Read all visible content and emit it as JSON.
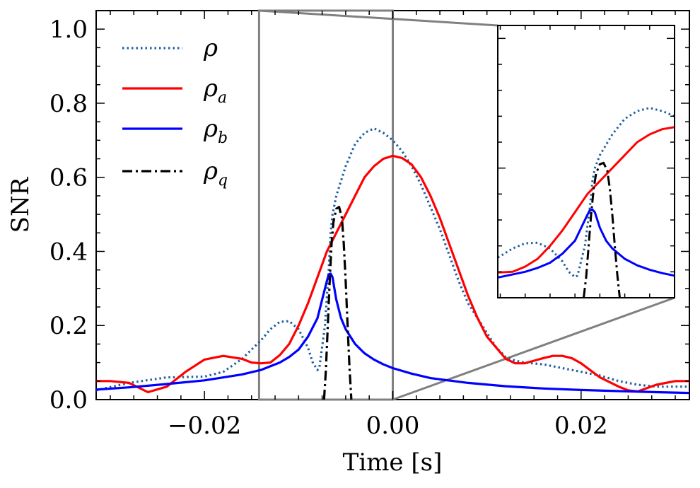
{
  "chart_data": {
    "type": "line",
    "title": "",
    "xlabel": "Time [s]",
    "ylabel": "SNR",
    "xlim": [
      -0.0315,
      0.0315
    ],
    "ylim": [
      0.0,
      1.05
    ],
    "xticks": [
      -0.02,
      0.0,
      0.02
    ],
    "xtick_labels": [
      "−0.02",
      "0.00",
      "0.02"
    ],
    "yticks": [
      0.0,
      0.2,
      0.4,
      0.6,
      0.8,
      1.0
    ],
    "ytick_labels": [
      "0.0",
      "0.2",
      "0.4",
      "0.6",
      "0.8",
      "1.0"
    ],
    "legend_location": "top-left",
    "series": [
      {
        "name": "ρ",
        "sub": "",
        "color": "#1f5fa0",
        "style": "dotted",
        "points": [
          [
            -0.0315,
            0.025
          ],
          [
            -0.028,
            0.045
          ],
          [
            -0.024,
            0.06
          ],
          [
            -0.02,
            0.062
          ],
          [
            -0.018,
            0.075
          ],
          [
            -0.016,
            0.11
          ],
          [
            -0.014,
            0.16
          ],
          [
            -0.013,
            0.19
          ],
          [
            -0.012,
            0.21
          ],
          [
            -0.011,
            0.212
          ],
          [
            -0.01,
            0.19
          ],
          [
            -0.009,
            0.14
          ],
          [
            -0.0085,
            0.1
          ],
          [
            -0.008,
            0.08
          ],
          [
            -0.0078,
            0.085
          ],
          [
            -0.0072,
            0.2
          ],
          [
            -0.0068,
            0.35
          ],
          [
            -0.0066,
            0.45
          ],
          [
            -0.0064,
            0.5
          ],
          [
            -0.006,
            0.55
          ],
          [
            -0.005,
            0.63
          ],
          [
            -0.004,
            0.69
          ],
          [
            -0.003,
            0.72
          ],
          [
            -0.002,
            0.732
          ],
          [
            -0.001,
            0.72
          ],
          [
            0.0,
            0.7
          ],
          [
            0.001,
            0.67
          ],
          [
            0.002,
            0.63
          ],
          [
            0.003,
            0.58
          ],
          [
            0.004,
            0.52
          ],
          [
            0.005,
            0.46
          ],
          [
            0.006,
            0.39
          ],
          [
            0.007,
            0.32
          ],
          [
            0.008,
            0.26
          ],
          [
            0.009,
            0.22
          ],
          [
            0.01,
            0.18
          ],
          [
            0.011,
            0.14
          ],
          [
            0.012,
            0.115
          ],
          [
            0.013,
            0.105
          ],
          [
            0.014,
            0.1
          ],
          [
            0.016,
            0.095
          ],
          [
            0.018,
            0.085
          ],
          [
            0.02,
            0.075
          ],
          [
            0.022,
            0.065
          ],
          [
            0.024,
            0.05
          ],
          [
            0.026,
            0.04
          ],
          [
            0.028,
            0.035
          ],
          [
            0.0315,
            0.035
          ]
        ]
      },
      {
        "name": "ρ",
        "sub": "a",
        "color": "#ff0000",
        "style": "solid",
        "points": [
          [
            -0.0315,
            0.05
          ],
          [
            -0.03,
            0.05
          ],
          [
            -0.028,
            0.045
          ],
          [
            -0.026,
            0.02
          ],
          [
            -0.024,
            0.035
          ],
          [
            -0.022,
            0.075
          ],
          [
            -0.02,
            0.108
          ],
          [
            -0.018,
            0.118
          ],
          [
            -0.016,
            0.11
          ],
          [
            -0.015,
            0.1
          ],
          [
            -0.014,
            0.098
          ],
          [
            -0.013,
            0.1
          ],
          [
            -0.012,
            0.12
          ],
          [
            -0.011,
            0.15
          ],
          [
            -0.01,
            0.2
          ],
          [
            -0.009,
            0.26
          ],
          [
            -0.008,
            0.33
          ],
          [
            -0.007,
            0.4
          ],
          [
            -0.006,
            0.45
          ],
          [
            -0.005,
            0.5
          ],
          [
            -0.004,
            0.55
          ],
          [
            -0.003,
            0.6
          ],
          [
            -0.002,
            0.63
          ],
          [
            -0.001,
            0.65
          ],
          [
            0.0,
            0.658
          ],
          [
            0.001,
            0.652
          ],
          [
            0.002,
            0.635
          ],
          [
            0.003,
            0.6
          ],
          [
            0.004,
            0.55
          ],
          [
            0.005,
            0.49
          ],
          [
            0.006,
            0.42
          ],
          [
            0.007,
            0.35
          ],
          [
            0.008,
            0.28
          ],
          [
            0.009,
            0.22
          ],
          [
            0.01,
            0.17
          ],
          [
            0.011,
            0.14
          ],
          [
            0.012,
            0.11
          ],
          [
            0.013,
            0.098
          ],
          [
            0.014,
            0.098
          ],
          [
            0.015,
            0.105
          ],
          [
            0.016,
            0.112
          ],
          [
            0.017,
            0.118
          ],
          [
            0.018,
            0.118
          ],
          [
            0.019,
            0.112
          ],
          [
            0.02,
            0.098
          ],
          [
            0.022,
            0.06
          ],
          [
            0.024,
            0.035
          ],
          [
            0.025,
            0.025
          ],
          [
            0.026,
            0.022
          ],
          [
            0.028,
            0.04
          ],
          [
            0.03,
            0.05
          ],
          [
            0.0315,
            0.05
          ]
        ]
      },
      {
        "name": "ρ",
        "sub": "b",
        "color": "#0000ff",
        "style": "solid",
        "points": [
          [
            -0.0315,
            0.027
          ],
          [
            -0.028,
            0.033
          ],
          [
            -0.024,
            0.042
          ],
          [
            -0.02,
            0.052
          ],
          [
            -0.016,
            0.068
          ],
          [
            -0.014,
            0.08
          ],
          [
            -0.012,
            0.1
          ],
          [
            -0.011,
            0.115
          ],
          [
            -0.01,
            0.135
          ],
          [
            -0.009,
            0.17
          ],
          [
            -0.008,
            0.22
          ],
          [
            -0.0075,
            0.27
          ],
          [
            -0.007,
            0.32
          ],
          [
            -0.0068,
            0.338
          ],
          [
            -0.0066,
            0.34
          ],
          [
            -0.0064,
            0.33
          ],
          [
            -0.0062,
            0.3
          ],
          [
            -0.006,
            0.27
          ],
          [
            -0.0055,
            0.22
          ],
          [
            -0.005,
            0.19
          ],
          [
            -0.004,
            0.15
          ],
          [
            -0.003,
            0.125
          ],
          [
            -0.002,
            0.108
          ],
          [
            -0.001,
            0.095
          ],
          [
            0.0,
            0.085
          ],
          [
            0.002,
            0.07
          ],
          [
            0.004,
            0.058
          ],
          [
            0.008,
            0.045
          ],
          [
            0.012,
            0.036
          ],
          [
            0.016,
            0.03
          ],
          [
            0.02,
            0.026
          ],
          [
            0.024,
            0.023
          ],
          [
            0.028,
            0.02
          ],
          [
            0.0315,
            0.018
          ]
        ]
      },
      {
        "name": "ρ",
        "sub": "q",
        "color": "#000000",
        "style": "dashdot",
        "points": [
          [
            -0.0073,
            0.0
          ],
          [
            -0.0071,
            0.08
          ],
          [
            -0.0069,
            0.2
          ],
          [
            -0.0067,
            0.32
          ],
          [
            -0.0065,
            0.42
          ],
          [
            -0.0063,
            0.48
          ],
          [
            -0.006,
            0.515
          ],
          [
            -0.0057,
            0.52
          ],
          [
            -0.0054,
            0.49
          ],
          [
            -0.0052,
            0.42
          ],
          [
            -0.005,
            0.32
          ],
          [
            -0.0048,
            0.2
          ],
          [
            -0.0046,
            0.09
          ],
          [
            -0.0044,
            0.0
          ]
        ]
      }
    ],
    "zoom_region": {
      "x": [
        -0.0142,
        0.0
      ],
      "y": [
        0.0,
        1.05
      ]
    },
    "inset": {
      "xlim": [
        -0.0142,
        0.0
      ],
      "ylim": [
        0.0,
        1.05
      ],
      "location": "top-right"
    }
  }
}
